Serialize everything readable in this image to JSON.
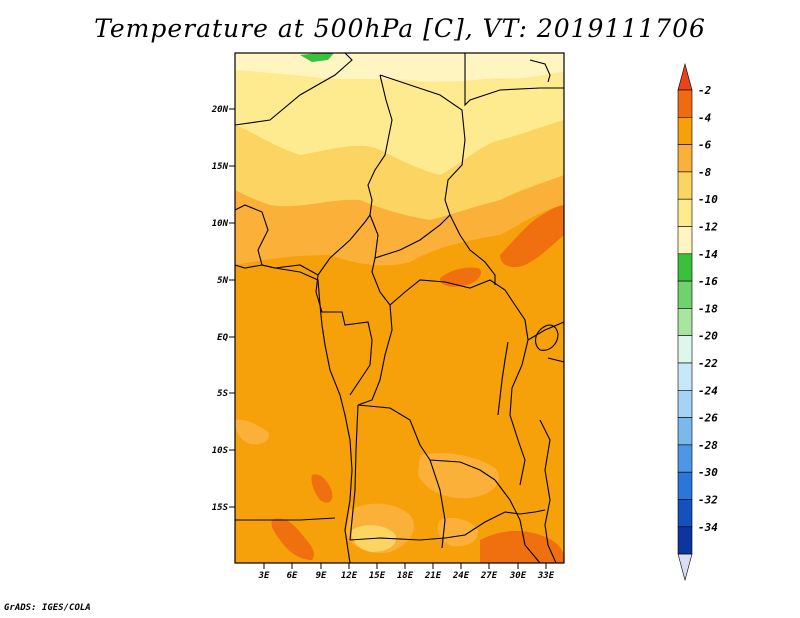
{
  "title": "Temperature at 500hPa [C], VT: 2019111706",
  "credit": "GrADS: IGES/COLA",
  "map": {
    "lat_labels": [
      "20N",
      "15N",
      "10N",
      "5N",
      "EQ",
      "5S",
      "10S",
      "15S"
    ],
    "lon_labels": [
      "3E",
      "6E",
      "9E",
      "12E",
      "15E",
      "18E",
      "21E",
      "24E",
      "27E",
      "30E",
      "33E"
    ],
    "field_colors": {
      "-12": "#fff5c0",
      "-10": "#ffeb8f",
      "-8": "#fcd461",
      "-6": "#fbb03a",
      "-4": "#f7a10a",
      "-2": "#f07010",
      "0": "#e34a1a",
      "-14": "#3bc03b"
    },
    "border_color": "#000000"
  },
  "legend": {
    "labels": [
      "-2",
      "-4",
      "-6",
      "-8",
      "-10",
      "-12",
      "-14",
      "-16",
      "-18",
      "-20",
      "-22",
      "-24",
      "-26",
      "-28",
      "-30",
      "-32",
      "-34"
    ],
    "colors": [
      "#f06a10",
      "#f7a10a",
      "#fbb03a",
      "#fcd461",
      "#ffeb8f",
      "#fff5c0",
      "#3bc03b",
      "#6fd36c",
      "#a8e6a0",
      "#def7ec",
      "#c6e8f8",
      "#a4d3f5",
      "#7ab8ee",
      "#4d98e6",
      "#2a76d9",
      "#1451bd",
      "#0c35a0"
    ],
    "top_arrow_color": "#e8431c",
    "bottom_arrow_color": "#0b1a6e",
    "bottom_tip_color": "#d8dcf5"
  }
}
